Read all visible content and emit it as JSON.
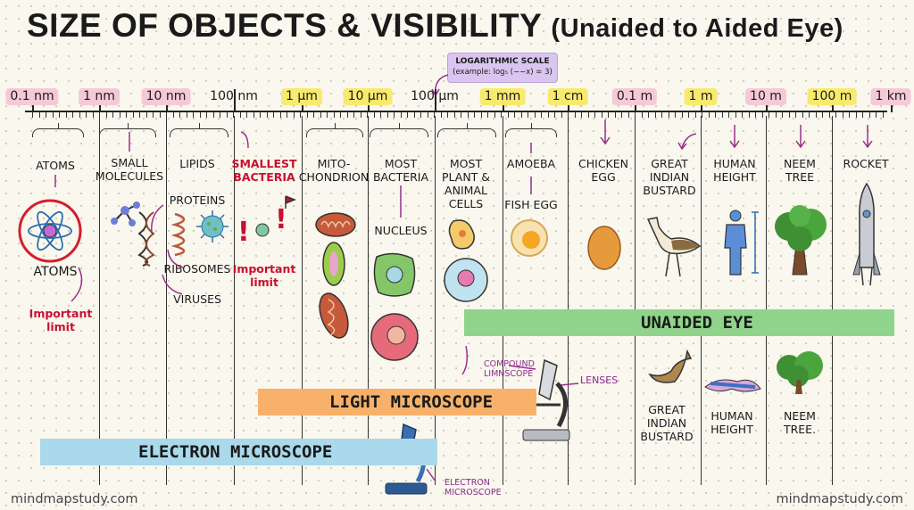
{
  "title": {
    "main": "SIZE OF OBJECTS & VISIBILITY",
    "sub": "(Unaided to Aided Eye)"
  },
  "log_note": {
    "heading": "LOGARITHMIC SCALE",
    "example": "(example: log₅ (−−x) = 3)"
  },
  "scale": [
    {
      "label": "0.1 nm",
      "color": "pink"
    },
    {
      "label": "1 nm",
      "color": "pink"
    },
    {
      "label": "10 nm",
      "color": "pink"
    },
    {
      "label": "100 nm",
      "color": "plain"
    },
    {
      "label": "1 µm",
      "color": "yellow"
    },
    {
      "label": "10 µm",
      "color": "yellow"
    },
    {
      "label": "100 µm",
      "color": "plain"
    },
    {
      "label": "1 mm",
      "color": "yellow"
    },
    {
      "label": "1 cm",
      "color": "yellow"
    },
    {
      "label": "0.1 m",
      "color": "pink"
    },
    {
      "label": "1 m",
      "color": "yellow"
    },
    {
      "label": "10 m",
      "color": "pink"
    },
    {
      "label": "100 m",
      "color": "yellow"
    },
    {
      "label": "1 km",
      "color": "pink"
    }
  ],
  "categories": {
    "atoms": "ATOMS",
    "small_molecules": "SMALL\nMOLECULES",
    "lipids": "LIPIDS",
    "proteins": "PROTEINS",
    "ribosomes": "RIBOSOMES",
    "viruses": "VIRUSES",
    "smallest_bacteria": "SMALLEST\nBACTERIA",
    "mitochondrion": "MITO-\nCHONDRION",
    "most_bacteria": "MOST\nBACTERIA",
    "nucleus": "NUCLEUS",
    "plant_animal_cells": "MOST\nPLANT &\nANIMAL\nCELLS",
    "amoeba": "AMOEBA",
    "fish_egg": "FISH EGG",
    "chicken_egg": "CHICKEN\nEGG",
    "great_indian_bustard": "GREAT\nINDIAN\nBUSTARD",
    "human_height": "HUMAN\nHEIGHT",
    "neem_tree": "NEEM\nTREE",
    "rocket": "ROCKET"
  },
  "annotations": {
    "atoms_lower": "ATOMS",
    "important_limit_1": "Important\nlimit",
    "important_limit_2": "Important\nlimit",
    "compound_microscope": "COMPOUND\nLIMNSCOPE",
    "lenses": "LENSES",
    "electron_microscope": "ELECTRON\nMICROSCOPE",
    "bustard_lower": "GREAT\nINDIAN\nBUSTARD",
    "human_lower": "HUMAN\nHEIGHT",
    "neem_lower": "NEEM\nTREE."
  },
  "bands": {
    "unaided": "UNAIDED EYE",
    "light": "LIGHT MICROSCOPE",
    "electron": "ELECTRON MICROSCOPE"
  },
  "footer": {
    "left": "mindmapstudy.com",
    "right": "mindmapstudy.com"
  },
  "colors": {
    "pink": "#f6c9d8",
    "yellow": "#f7ea6e",
    "green": "#8fd48a",
    "orange": "#f7b16a",
    "blue": "#a9d9ea",
    "accent_red": "#c8102e",
    "arrow_purple": "#9b2d8a"
  }
}
